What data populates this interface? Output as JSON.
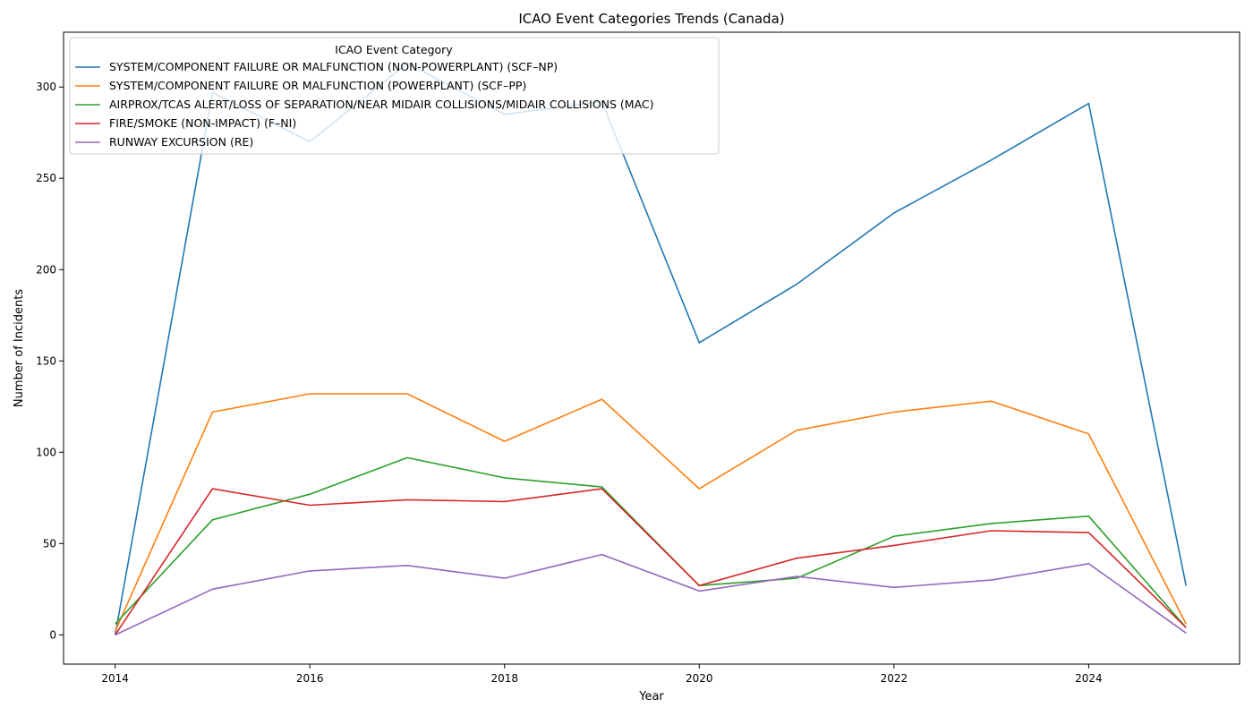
{
  "chart_data": {
    "type": "line",
    "title": "ICAO Event Categories Trends (Canada)",
    "xlabel": "Year",
    "ylabel": "Number of Incidents",
    "xlim": [
      2013.47,
      2025.55
    ],
    "ylim": [
      -16,
      330
    ],
    "x_ticks": [
      2014,
      2016,
      2018,
      2020,
      2022,
      2024
    ],
    "y_ticks": [
      0,
      50,
      100,
      150,
      200,
      250,
      300
    ],
    "grid": false,
    "legend": {
      "title": "ICAO Event Category",
      "position": "top-left"
    },
    "x": [
      2014,
      2015,
      2016,
      2017,
      2018,
      2019,
      2020,
      2021,
      2022,
      2023,
      2024,
      2025
    ],
    "series": [
      {
        "name": "SYSTEM/COMPONENT FAILURE OR MALFUNCTION (NON-POWERPLANT) (SCF–NP)",
        "color": "#1f77b4",
        "values": [
          0,
          297,
          270,
          313,
          285,
          292,
          160,
          192,
          231,
          260,
          291,
          27
        ]
      },
      {
        "name": "SYSTEM/COMPONENT FAILURE OR MALFUNCTION (POWERPLANT) (SCF–PP)",
        "color": "#ff7f0e",
        "values": [
          2,
          122,
          132,
          132,
          106,
          129,
          80,
          112,
          122,
          128,
          110,
          6
        ]
      },
      {
        "name": "AIRPROX/TCAS ALERT/LOSS OF SEPARATION/NEAR MIDAIR COLLISIONS/MIDAIR COLLISIONS (MAC)",
        "color": "#2ca02c",
        "values": [
          6,
          63,
          77,
          97,
          86,
          81,
          27,
          31,
          54,
          61,
          65,
          4
        ]
      },
      {
        "name": "FIRE/SMOKE (NON-IMPACT) (F–NI)",
        "color": "#d62728",
        "values": [
          0,
          80,
          71,
          74,
          73,
          80,
          27,
          42,
          49,
          57,
          56,
          4
        ]
      },
      {
        "name": "RUNWAY EXCURSION (RE)",
        "color": "#9467bd",
        "values": [
          0,
          25,
          35,
          38,
          31,
          44,
          24,
          32,
          26,
          30,
          39,
          1
        ]
      }
    ]
  }
}
